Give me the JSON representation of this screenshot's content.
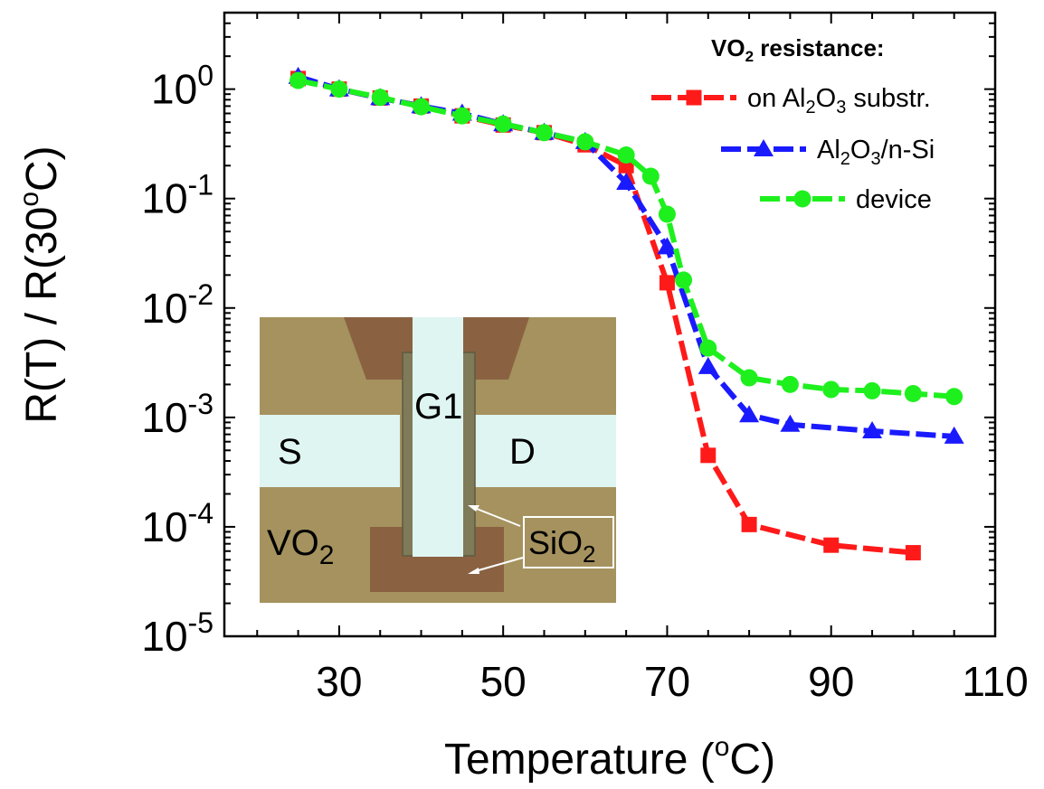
{
  "chart_data": {
    "type": "scatter",
    "xlabel": "Temperature (°C)",
    "ylabel": "R(T) / R(30°C)",
    "xlim": [
      16,
      110
    ],
    "ylim": [
      1e-05,
      5
    ],
    "yscale": "log",
    "x_ticks": [
      "30",
      "50",
      "70",
      "90",
      "110"
    ],
    "y_ticks": [
      {
        "base": "10",
        "exp": "0",
        "value": 1
      },
      {
        "base": "10",
        "exp": "-1",
        "value": 0.1
      },
      {
        "base": "10",
        "exp": "-2",
        "value": 0.01
      },
      {
        "base": "10",
        "exp": "-3",
        "value": 0.001
      },
      {
        "base": "10",
        "exp": "-4",
        "value": 0.0001
      },
      {
        "base": "10",
        "exp": "-5",
        "value": 1e-05
      }
    ],
    "legend_title": {
      "text": "VO",
      "sub": "2",
      "rest": " resistance:"
    },
    "legend_position": "top-right",
    "grid": false,
    "series": [
      {
        "name": "on Al2O3 substr.",
        "label_parts": [
          {
            "t": "on Al",
            "sub": false
          },
          {
            "t": "2",
            "sub": true
          },
          {
            "t": "O",
            "sub": false
          },
          {
            "t": "3",
            "sub": true
          },
          {
            "t": " substr.",
            "sub": false
          }
        ],
        "color": "#ff1a1a",
        "marker": "square",
        "points": [
          [
            25,
            1.25
          ],
          [
            30,
            1.0
          ],
          [
            35,
            0.83
          ],
          [
            40,
            0.7
          ],
          [
            45,
            0.57
          ],
          [
            50,
            0.47
          ],
          [
            55,
            0.4
          ],
          [
            60,
            0.31
          ],
          [
            65,
            0.2
          ],
          [
            70,
            0.017
          ],
          [
            75,
            0.00045
          ],
          [
            80,
            0.000105
          ],
          [
            90,
            6.8e-05
          ],
          [
            100,
            5.8e-05
          ]
        ]
      },
      {
        "name": "Al2O3/n-Si",
        "label_parts": [
          {
            "t": "Al",
            "sub": false
          },
          {
            "t": "2",
            "sub": true
          },
          {
            "t": "O",
            "sub": false
          },
          {
            "t": "3",
            "sub": true
          },
          {
            "t": "/n-Si",
            "sub": false
          }
        ],
        "color": "#1a1aff",
        "marker": "triangle",
        "points": [
          [
            25,
            1.3
          ],
          [
            30,
            1.0
          ],
          [
            35,
            0.83
          ],
          [
            40,
            0.7
          ],
          [
            45,
            0.6
          ],
          [
            50,
            0.48
          ],
          [
            55,
            0.4
          ],
          [
            60,
            0.33
          ],
          [
            65,
            0.14
          ],
          [
            70,
            0.036
          ],
          [
            75,
            0.0029
          ],
          [
            80,
            0.00105
          ],
          [
            85,
            0.00086
          ],
          [
            95,
            0.00075
          ],
          [
            105,
            0.00067
          ]
        ]
      },
      {
        "name": "device",
        "label_parts": [
          {
            "t": "device",
            "sub": false
          }
        ],
        "color": "#1ef01e",
        "marker": "circle",
        "points": [
          [
            25,
            1.2
          ],
          [
            30,
            1.0
          ],
          [
            35,
            0.84
          ],
          [
            40,
            0.69
          ],
          [
            45,
            0.57
          ],
          [
            50,
            0.48
          ],
          [
            55,
            0.4
          ],
          [
            60,
            0.33
          ],
          [
            65,
            0.25
          ],
          [
            68,
            0.16
          ],
          [
            70,
            0.072
          ],
          [
            72,
            0.018
          ],
          [
            75,
            0.0043
          ],
          [
            80,
            0.0023
          ],
          [
            85,
            0.002
          ],
          [
            90,
            0.0018
          ],
          [
            95,
            0.00175
          ],
          [
            100,
            0.00165
          ],
          [
            105,
            0.00155
          ]
        ]
      }
    ],
    "inset": {
      "labels": {
        "gate": "G1",
        "source": "S",
        "drain": "D",
        "channel": {
          "base": "VO",
          "sub": "2"
        },
        "oxide": {
          "base": "SiO",
          "sub": "2"
        }
      },
      "colors": {
        "background": "#a5925e",
        "electrode": "#dff5f2",
        "oxide_pad": "#8a6242",
        "gate_overlay": "#7f7a58"
      }
    }
  }
}
